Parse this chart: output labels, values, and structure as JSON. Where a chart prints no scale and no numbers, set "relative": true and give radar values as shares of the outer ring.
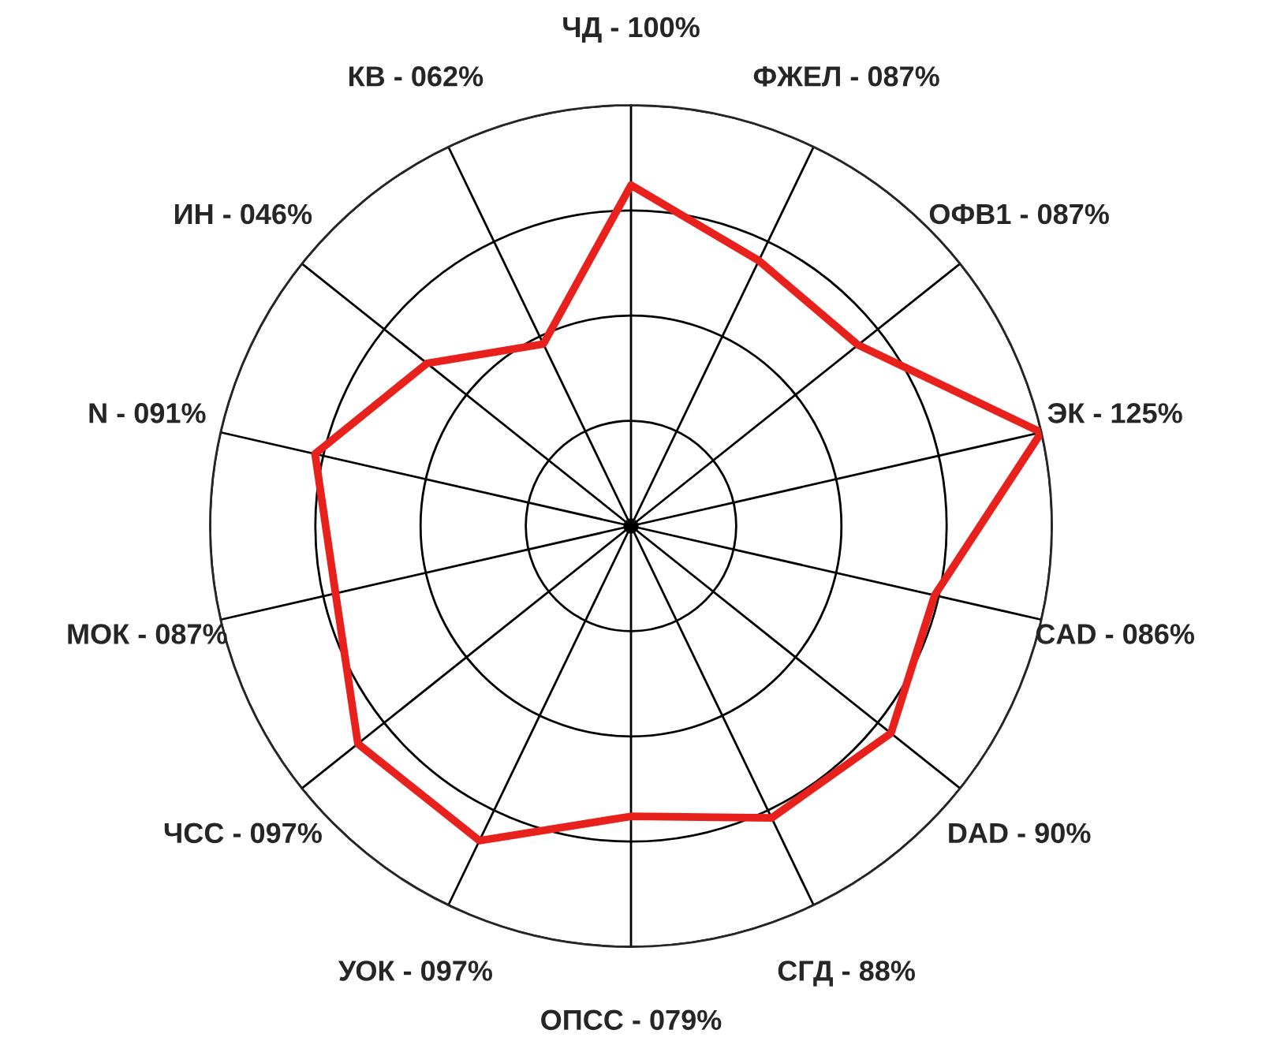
{
  "chart_data": {
    "type": "radar",
    "categories": [
      "ЧД - 100%",
      "ФЖЕЛ - 087%",
      "ОФВ1 - 087%",
      "ЭК - 125%",
      "CAD - 086%",
      "DAD - 90%",
      "СГД - 88%",
      "ОПСС - 079%",
      "УОК - 097%",
      "ЧСС - 097%",
      "МОК - 087%",
      "N - 091%",
      "ИН - 046%",
      "КВ - 062%"
    ],
    "relative": true,
    "series": [
      {
        "color": "#e8211c",
        "values": [
          0.81,
          0.7,
          0.69,
          1.0,
          0.74,
          0.79,
          0.77,
          0.69,
          0.83,
          0.83,
          0.72,
          0.77,
          0.62,
          0.48
        ]
      }
    ],
    "grid": true,
    "marker": "none",
    "line_style": "solid"
  }
}
